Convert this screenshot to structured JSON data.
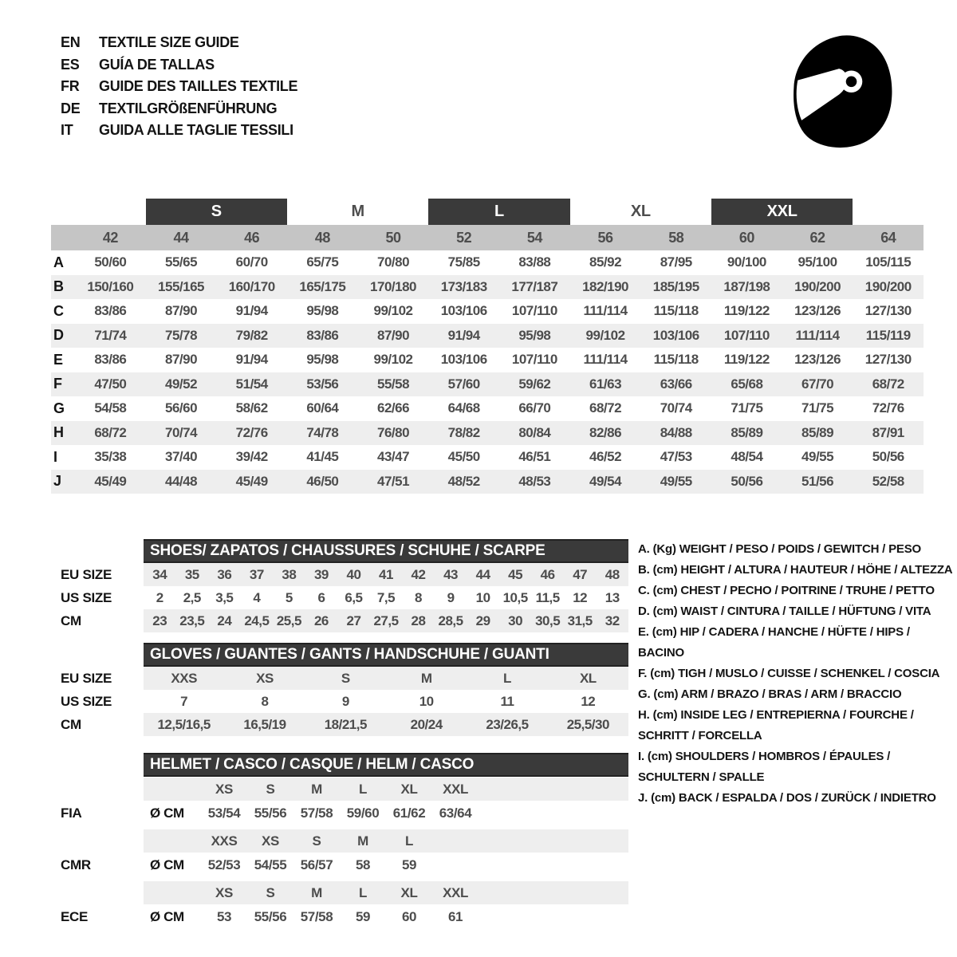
{
  "colors": {
    "dark_bar": "#3a3a3a",
    "header_gray": "#c5c5c5",
    "row_alt": "#eeeeee",
    "value_text": "#4d4d4d",
    "label_text": "#141414"
  },
  "languages": [
    {
      "code": "EN",
      "label": "TEXTILE SIZE GUIDE"
    },
    {
      "code": "ES",
      "label": "GUÍA DE TALLAS"
    },
    {
      "code": "FR",
      "label": "GUIDE DES TAILLES TEXTILE"
    },
    {
      "code": "DE",
      "label": "TEXTILGRÖßENFÜHRUNG"
    },
    {
      "code": "IT",
      "label": "GUIDA ALLE TAGLIE TESSILI"
    }
  ],
  "icon": {
    "name": "helmet-icon"
  },
  "main_table": {
    "size_groups": [
      {
        "label": "S",
        "dark": true
      },
      {
        "label": "M",
        "dark": false
      },
      {
        "label": "L",
        "dark": true
      },
      {
        "label": "XL",
        "dark": false
      },
      {
        "label": "XXL",
        "dark": true
      }
    ],
    "columns": [
      "42",
      "44",
      "46",
      "48",
      "50",
      "52",
      "54",
      "56",
      "58",
      "60",
      "62",
      "64"
    ],
    "rows": [
      {
        "label": "A",
        "values": [
          "50/60",
          "55/65",
          "60/70",
          "65/75",
          "70/80",
          "75/85",
          "83/88",
          "85/92",
          "87/95",
          "90/100",
          "95/100",
          "105/115"
        ]
      },
      {
        "label": "B",
        "values": [
          "150/160",
          "155/165",
          "160/170",
          "165/175",
          "170/180",
          "173/183",
          "177/187",
          "182/190",
          "185/195",
          "187/198",
          "190/200",
          "190/200"
        ]
      },
      {
        "label": "C",
        "values": [
          "83/86",
          "87/90",
          "91/94",
          "95/98",
          "99/102",
          "103/106",
          "107/110",
          "111/114",
          "115/118",
          "119/122",
          "123/126",
          "127/130"
        ]
      },
      {
        "label": "D",
        "values": [
          "71/74",
          "75/78",
          "79/82",
          "83/86",
          "87/90",
          "91/94",
          "95/98",
          "99/102",
          "103/106",
          "107/110",
          "111/114",
          "115/119"
        ]
      },
      {
        "label": "E",
        "values": [
          "83/86",
          "87/90",
          "91/94",
          "95/98",
          "99/102",
          "103/106",
          "107/110",
          "111/114",
          "115/118",
          "119/122",
          "123/126",
          "127/130"
        ]
      },
      {
        "label": "F",
        "values": [
          "47/50",
          "49/52",
          "51/54",
          "53/56",
          "55/58",
          "57/60",
          "59/62",
          "61/63",
          "63/66",
          "65/68",
          "67/70",
          "68/72"
        ]
      },
      {
        "label": "G",
        "values": [
          "54/58",
          "56/60",
          "58/62",
          "60/64",
          "62/66",
          "64/68",
          "66/70",
          "68/72",
          "70/74",
          "71/75",
          "71/75",
          "72/76"
        ]
      },
      {
        "label": "H",
        "values": [
          "68/72",
          "70/74",
          "72/76",
          "74/78",
          "76/80",
          "78/82",
          "80/84",
          "82/86",
          "84/88",
          "85/89",
          "85/89",
          "87/91"
        ]
      },
      {
        "label": "I",
        "values": [
          "35/38",
          "37/40",
          "39/42",
          "41/45",
          "43/47",
          "45/50",
          "46/51",
          "46/52",
          "47/53",
          "48/54",
          "49/55",
          "50/56"
        ]
      },
      {
        "label": "J",
        "values": [
          "45/49",
          "44/48",
          "45/49",
          "46/50",
          "47/51",
          "48/52",
          "48/53",
          "49/54",
          "49/55",
          "50/56",
          "51/56",
          "52/58"
        ]
      }
    ]
  },
  "shoes": {
    "title": "SHOES/ ZAPATOS / CHAUSSURES / SCHUHE / SCARPE",
    "rows": [
      {
        "label": "EU SIZE",
        "values": [
          "34",
          "35",
          "36",
          "37",
          "38",
          "39",
          "40",
          "41",
          "42",
          "43",
          "44",
          "45",
          "46",
          "47",
          "48"
        ]
      },
      {
        "label": "US SIZE",
        "values": [
          "2",
          "2,5",
          "3,5",
          "4",
          "5",
          "6",
          "6,5",
          "7,5",
          "8",
          "9",
          "10",
          "10,5",
          "11,5",
          "12",
          "13"
        ]
      },
      {
        "label": "CM",
        "values": [
          "23",
          "23,5",
          "24",
          "24,5",
          "25,5",
          "26",
          "27",
          "27,5",
          "28",
          "28,5",
          "29",
          "30",
          "30,5",
          "31,5",
          "32"
        ]
      }
    ]
  },
  "gloves": {
    "title": "GLOVES / GUANTES / GANTS / HANDSCHUHE / GUANTI",
    "rows": [
      {
        "label": "EU SIZE",
        "values": [
          "XXS",
          "XS",
          "S",
          "M",
          "L",
          "XL"
        ]
      },
      {
        "label": "US SIZE",
        "values": [
          "7",
          "8",
          "9",
          "10",
          "11",
          "12"
        ]
      },
      {
        "label": "CM",
        "values": [
          "12,5/16,5",
          "16,5/19",
          "18/21,5",
          "20/24",
          "23/26,5",
          "25,5/30"
        ]
      }
    ]
  },
  "helmet": {
    "title": "HELMET / CASCO / CASQUE / HELM / CASCO",
    "groups": [
      {
        "label": "FIA",
        "unit": "Ø CM",
        "sizes": [
          "XS",
          "S",
          "M",
          "L",
          "XL",
          "XXL"
        ],
        "values": [
          "53/54",
          "55/56",
          "57/58",
          "59/60",
          "61/62",
          "63/64"
        ]
      },
      {
        "label": "CMR",
        "unit": "Ø CM",
        "sizes": [
          "XXS",
          "XS",
          "S",
          "M",
          "L"
        ],
        "values": [
          "52/53",
          "54/55",
          "56/57",
          "58",
          "59"
        ]
      },
      {
        "label": "ECE",
        "unit": "Ø CM",
        "sizes": [
          "XS",
          "S",
          "M",
          "L",
          "XL",
          "XXL"
        ],
        "values": [
          "53",
          "55/56",
          "57/58",
          "59",
          "60",
          "61"
        ]
      }
    ]
  },
  "legend": [
    {
      "key": "A.",
      "unit": "(Kg)",
      "text": "WEIGHT / PESO / POIDS / GEWITCH / PESO"
    },
    {
      "key": "B.",
      "unit": "(cm)",
      "text": "HEIGHT / ALTURA / HAUTEUR / HÖHE / ALTEZZA"
    },
    {
      "key": "C.",
      "unit": "(cm)",
      "text": "CHEST / PECHO / POITRINE / TRUHE / PETTO"
    },
    {
      "key": "D.",
      "unit": "(cm)",
      "text": "WAIST / CINTURA / TAILLE / HÜFTUNG / VITA"
    },
    {
      "key": "E.",
      "unit": "(cm)",
      "text": "HIP / CADERA / HANCHE / HÜFTE / HIPS /  BACINO"
    },
    {
      "key": "F.",
      "unit": "(cm)",
      "text": "TIGH / MUSLO / CUISSE / SCHENKEL / COSCIA"
    },
    {
      "key": "G.",
      "unit": "(cm)",
      "text": "ARM  / BRAZO / BRAS / ARM / BRACCIO"
    },
    {
      "key": "H.",
      "unit": "(cm)",
      "text": "INSIDE LEG / ENTREPIERNA / FOURCHE / SCHRITT / FORCELLA"
    },
    {
      "key": "I.",
      "unit": "(cm)",
      "text": "SHOULDERS / HOMBROS / ÉPAULES / SCHULTERN / SPALLE"
    },
    {
      "key": "J.",
      "unit": "(cm)",
      "text": "BACK / ESPALDA / DOS / ZURÜCK / INDIETRO"
    }
  ]
}
